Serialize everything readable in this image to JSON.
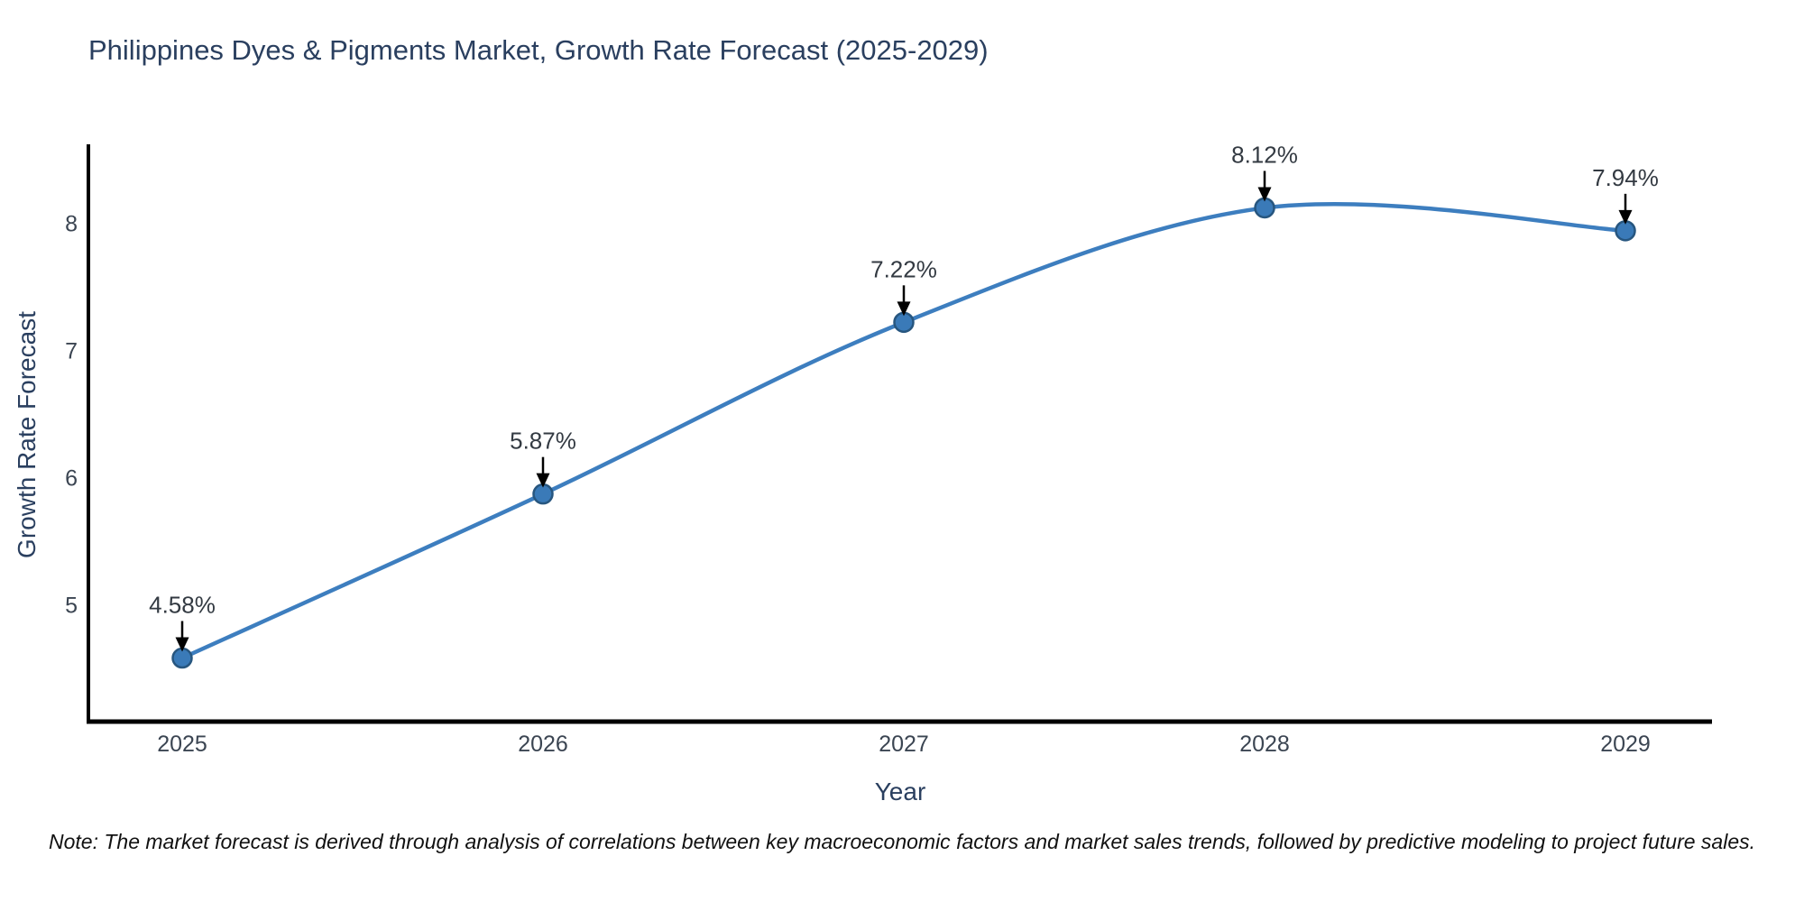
{
  "chart_data": {
    "type": "line",
    "title": "Philippines Dyes & Pigments Market, Growth Rate Forecast (2025-2029)",
    "xlabel": "Year",
    "ylabel": "Growth Rate Forecast",
    "categories": [
      "2025",
      "2026",
      "2027",
      "2028",
      "2029"
    ],
    "series": [
      {
        "name": "Growth Rate Forecast",
        "values": [
          4.58,
          5.87,
          7.22,
          8.12,
          7.94
        ],
        "labels": [
          "4.58%",
          "5.87%",
          "7.22%",
          "8.12%",
          "7.94%"
        ]
      }
    ],
    "yticks": [
      5,
      6,
      7,
      8
    ],
    "ylim": [
      4.08,
      8.62
    ],
    "grid": false,
    "legend_position": "none",
    "line_color": "#3d7ebf",
    "marker_fill_color": "#3a7ab8",
    "marker_edge_color": "#27567f",
    "annotation_arrow_color": "#000000",
    "axis_spine_color": "#000000",
    "note": "Note: The market forecast is derived through analysis of correlations between key macroeconomic factors and market sales trends, followed by predictive modeling to project future sales."
  }
}
